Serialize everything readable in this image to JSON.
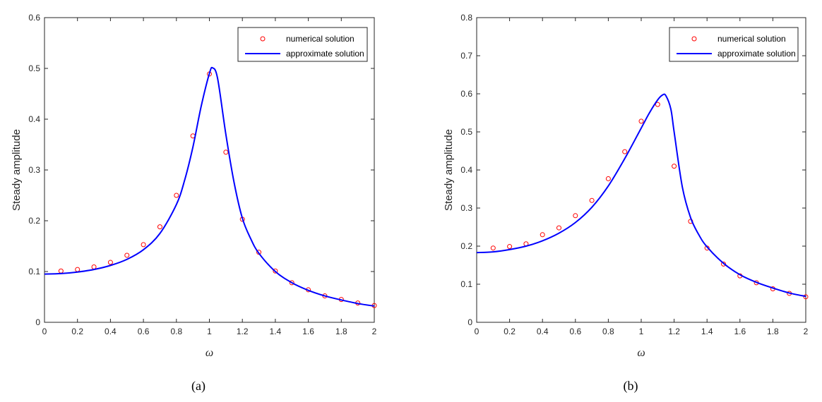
{
  "chart_data": [
    {
      "type": "line",
      "caption": "(a)",
      "xlabel": "ω",
      "ylabel": "Steady amplitude",
      "xlim": [
        0,
        2
      ],
      "ylim": [
        0,
        0.6
      ],
      "xticks": [
        "0",
        "0.2",
        "0.4",
        "0.6",
        "0.8",
        "1",
        "1.2",
        "1.4",
        "1.6",
        "1.8",
        "2"
      ],
      "yticks": [
        "0",
        "0.1",
        "0.2",
        "0.3",
        "0.4",
        "0.5",
        "0.6"
      ],
      "legend_position": "top-right",
      "series": [
        {
          "name": "numerical solution",
          "kind": "markers",
          "color": "#ff0000",
          "x": [
            0.1,
            0.2,
            0.3,
            0.4,
            0.5,
            0.6,
            0.7,
            0.8,
            0.9,
            1.0,
            1.1,
            1.2,
            1.3,
            1.4,
            1.5,
            1.6,
            1.7,
            1.8,
            1.9,
            2.0
          ],
          "y": [
            0.101,
            0.104,
            0.109,
            0.118,
            0.132,
            0.153,
            0.188,
            0.25,
            0.367,
            0.489,
            0.335,
            0.203,
            0.138,
            0.101,
            0.078,
            0.064,
            0.052,
            0.045,
            0.038,
            0.033
          ]
        },
        {
          "name": "approximate solution",
          "kind": "line",
          "color": "#0000ff",
          "x": [
            0,
            0.1,
            0.2,
            0.3,
            0.4,
            0.5,
            0.6,
            0.7,
            0.8,
            0.85,
            0.9,
            0.95,
            1.0,
            1.02,
            1.05,
            1.1,
            1.15,
            1.2,
            1.25,
            1.3,
            1.4,
            1.5,
            1.6,
            1.7,
            1.8,
            1.9,
            2.0
          ],
          "y": [
            0.095,
            0.096,
            0.099,
            0.104,
            0.112,
            0.124,
            0.143,
            0.175,
            0.232,
            0.28,
            0.345,
            0.425,
            0.49,
            0.501,
            0.48,
            0.37,
            0.275,
            0.205,
            0.165,
            0.136,
            0.1,
            0.078,
            0.063,
            0.052,
            0.044,
            0.037,
            0.032
          ]
        }
      ]
    },
    {
      "type": "line",
      "caption": "(b)",
      "xlabel": "ω",
      "ylabel": "Steady amplitude",
      "xlim": [
        0,
        2
      ],
      "ylim": [
        0,
        0.8
      ],
      "xticks": [
        "0",
        "0.2",
        "0.4",
        "0.6",
        "0.8",
        "1",
        "1.2",
        "1.4",
        "1.6",
        "1.8",
        "2"
      ],
      "yticks": [
        "0",
        "0.1",
        "0.2",
        "0.3",
        "0.4",
        "0.5",
        "0.6",
        "0.7",
        "0.8"
      ],
      "legend_position": "top-right",
      "series": [
        {
          "name": "numerical solution",
          "kind": "markers",
          "color": "#ff0000",
          "x": [
            0.1,
            0.2,
            0.3,
            0.4,
            0.5,
            0.6,
            0.7,
            0.8,
            0.9,
            1.0,
            1.1,
            1.2,
            1.3,
            1.4,
            1.5,
            1.6,
            1.7,
            1.8,
            1.9,
            2.0
          ],
          "y": [
            0.195,
            0.199,
            0.206,
            0.23,
            0.248,
            0.28,
            0.32,
            0.377,
            0.448,
            0.528,
            0.572,
            0.41,
            0.265,
            0.195,
            0.153,
            0.122,
            0.104,
            0.088,
            0.076,
            0.067
          ]
        },
        {
          "name": "approximate solution",
          "kind": "line",
          "color": "#0000ff",
          "x": [
            0,
            0.1,
            0.2,
            0.3,
            0.4,
            0.5,
            0.6,
            0.7,
            0.8,
            0.9,
            1.0,
            1.05,
            1.1,
            1.13,
            1.15,
            1.18,
            1.2,
            1.25,
            1.3,
            1.35,
            1.4,
            1.5,
            1.6,
            1.7,
            1.8,
            1.9,
            2.0
          ],
          "y": [
            0.183,
            0.185,
            0.191,
            0.2,
            0.214,
            0.234,
            0.262,
            0.302,
            0.358,
            0.43,
            0.51,
            0.55,
            0.584,
            0.597,
            0.595,
            0.56,
            0.5,
            0.355,
            0.275,
            0.23,
            0.198,
            0.155,
            0.125,
            0.105,
            0.09,
            0.077,
            0.068
          ]
        }
      ]
    }
  ]
}
